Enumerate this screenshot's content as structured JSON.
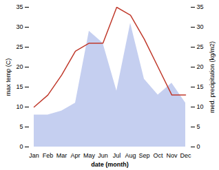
{
  "chart_data": {
    "type": "line",
    "categories": [
      "Jan",
      "Feb",
      "Mar",
      "Apr",
      "May",
      "Jun",
      "Jul",
      "Aug",
      "Sep",
      "Oct",
      "Nov",
      "Dec"
    ],
    "series": [
      {
        "type": "area",
        "axis": "y2",
        "color": "#c5cff0",
        "values": [
          8,
          8,
          9,
          11,
          29,
          26,
          14,
          31,
          17,
          13,
          16,
          11
        ]
      },
      {
        "type": "line",
        "color": "#c0392b",
        "values": [
          10,
          13,
          18,
          24,
          26,
          26,
          35,
          33,
          27,
          20,
          13,
          13
        ]
      }
    ],
    "xlabel": "date (month)",
    "ylabel": "max temp (C)",
    "y2label": "med. precipitation (kg/m2)",
    "ylim": [
      0,
      35
    ],
    "yticks": [
      0,
      5,
      10,
      15,
      20,
      25,
      30,
      35
    ],
    "y2lim": [
      0,
      35
    ],
    "y2ticks": [
      0,
      5,
      10,
      15,
      20,
      25,
      30,
      35
    ],
    "grid": false
  }
}
